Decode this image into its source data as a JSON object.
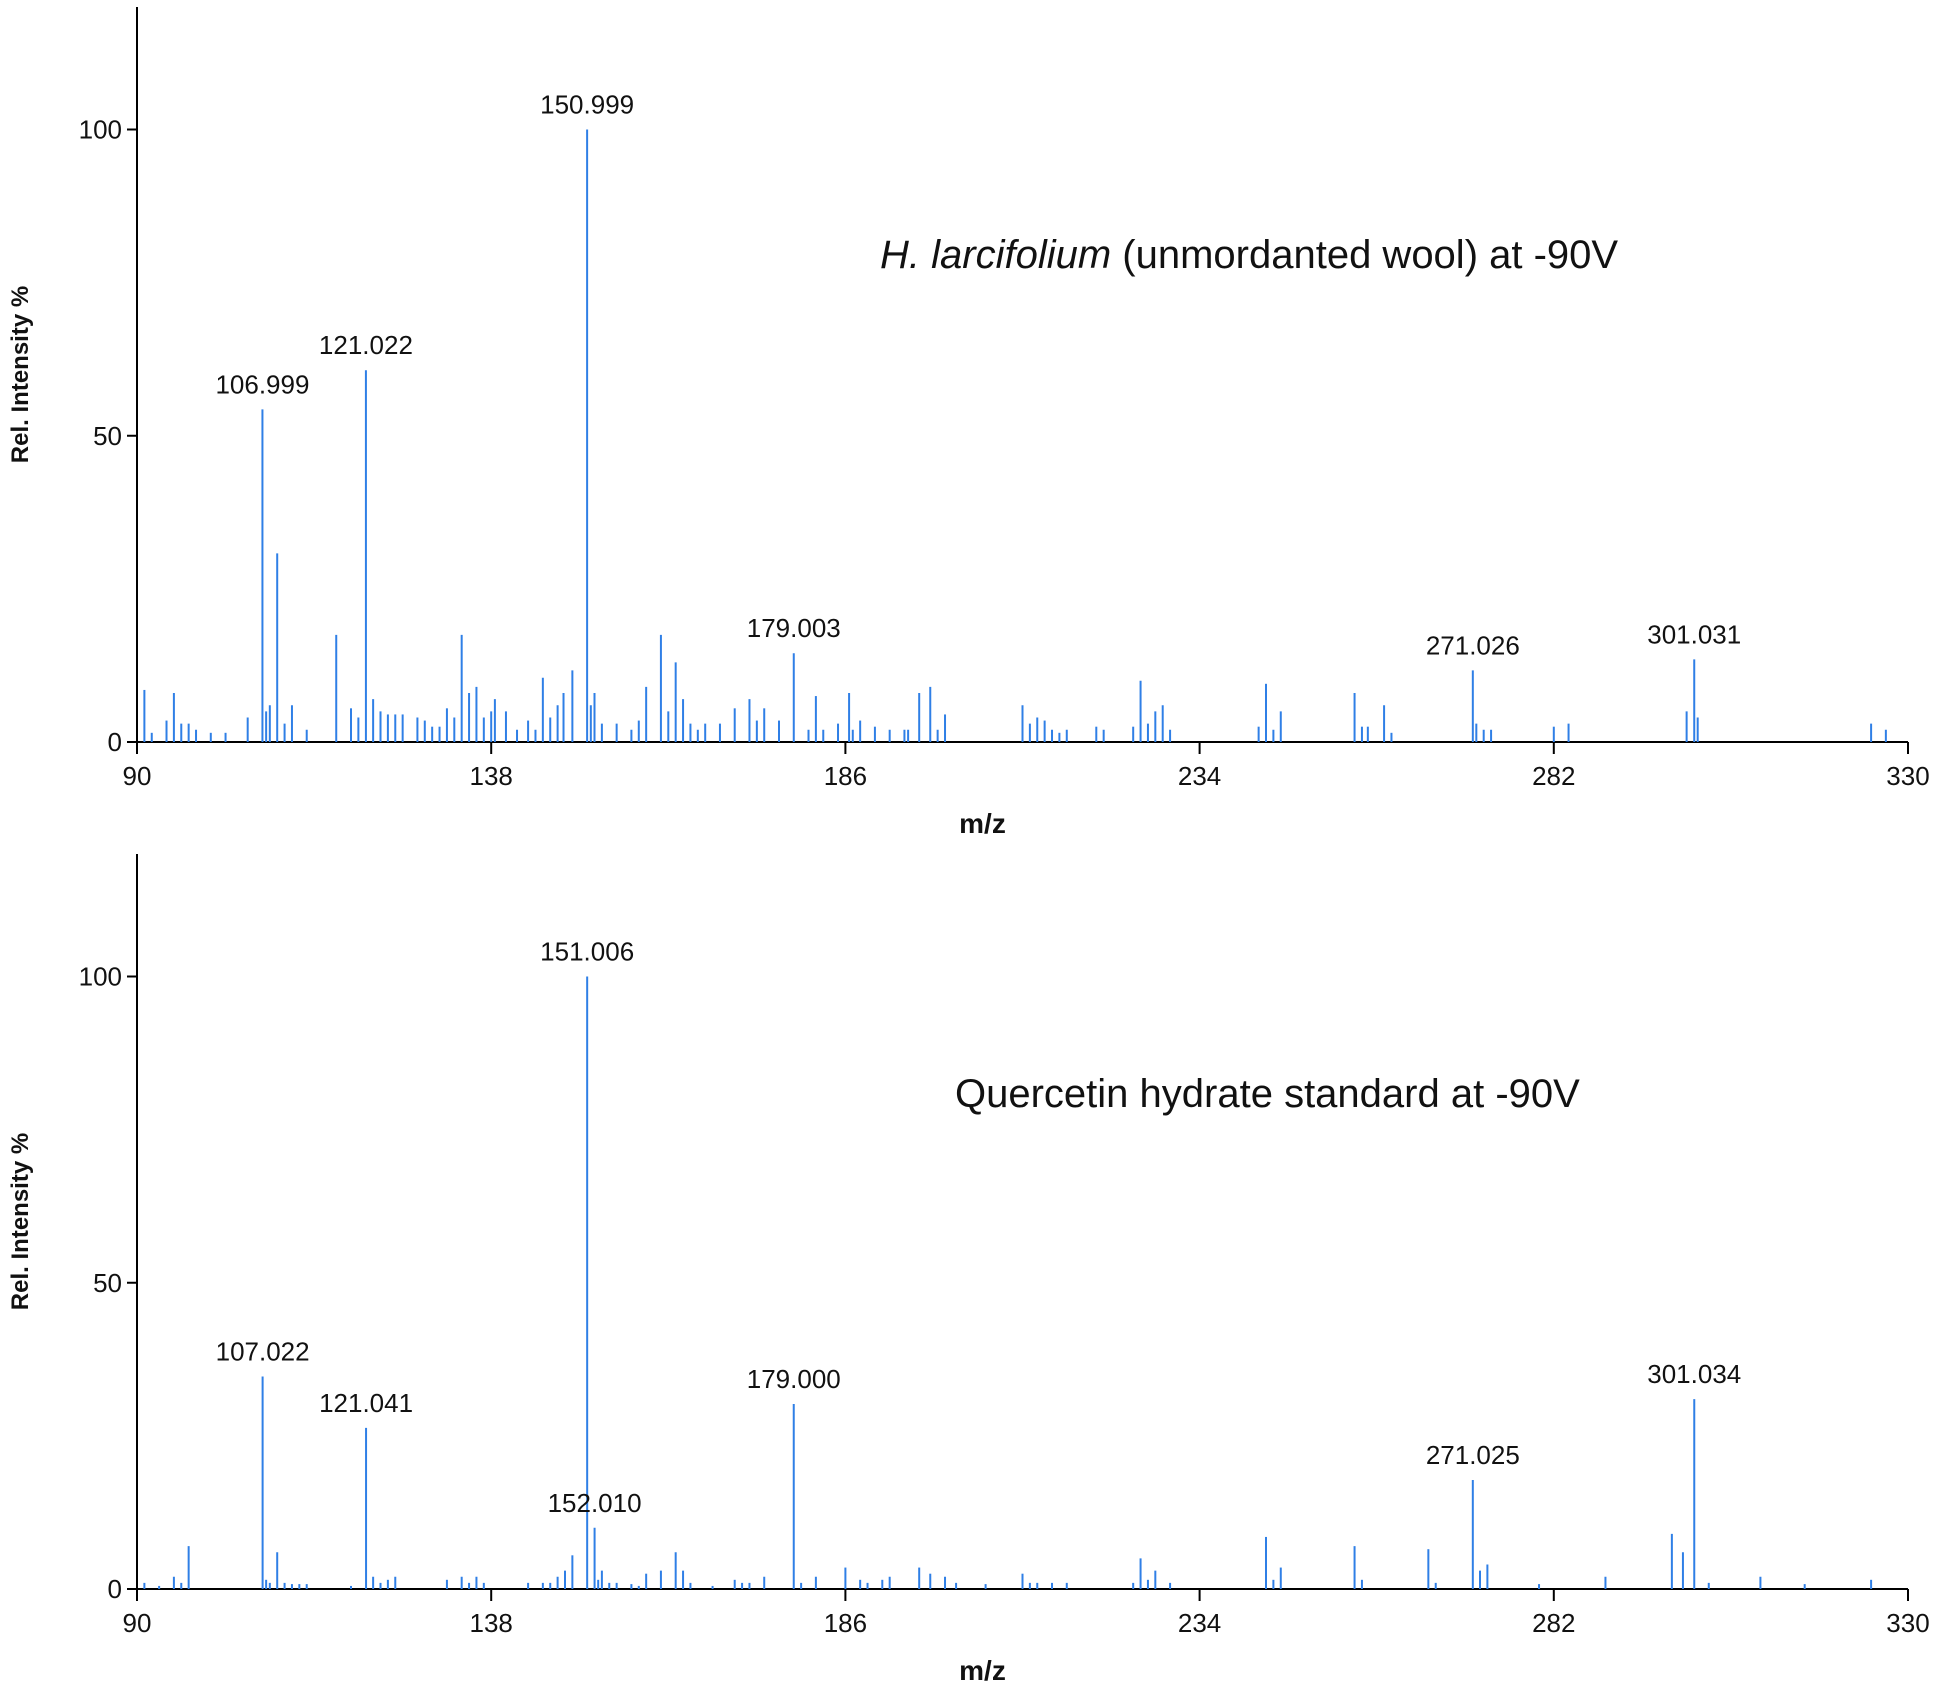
{
  "chart_data": [
    {
      "type": "bar",
      "chart_kind": "mass-spectrum-stick",
      "annotation": {
        "italic": "H. larcifolium",
        "rest": " (unmordanted wool) at -90V"
      },
      "xlabel": "m/z",
      "ylabel": "Rel. Intensity %",
      "xlim": [
        90,
        330
      ],
      "ylim": [
        0,
        120
      ],
      "xticks": [
        90,
        138,
        186,
        234,
        282,
        330
      ],
      "yticks": [
        0,
        50,
        100
      ],
      "grid": false,
      "color": "#2f7fe6",
      "peaks": [
        {
          "x": 91,
          "y": 8.5
        },
        {
          "x": 92,
          "y": 1.5
        },
        {
          "x": 94,
          "y": 3.5
        },
        {
          "x": 95,
          "y": 8
        },
        {
          "x": 96,
          "y": 3
        },
        {
          "x": 97,
          "y": 3
        },
        {
          "x": 98,
          "y": 2
        },
        {
          "x": 100,
          "y": 1.5
        },
        {
          "x": 102,
          "y": 1.5
        },
        {
          "x": 105,
          "y": 4
        },
        {
          "x": 106.999,
          "y": 54.3,
          "label": "106.999"
        },
        {
          "x": 107.5,
          "y": 5
        },
        {
          "x": 108,
          "y": 6
        },
        {
          "x": 109,
          "y": 30.8
        },
        {
          "x": 110,
          "y": 3
        },
        {
          "x": 111,
          "y": 6
        },
        {
          "x": 113,
          "y": 2
        },
        {
          "x": 117,
          "y": 17.5
        },
        {
          "x": 119,
          "y": 5.5
        },
        {
          "x": 120,
          "y": 4
        },
        {
          "x": 121.022,
          "y": 60.7,
          "label": "121.022"
        },
        {
          "x": 122,
          "y": 7
        },
        {
          "x": 123,
          "y": 5
        },
        {
          "x": 124,
          "y": 4.5
        },
        {
          "x": 125,
          "y": 4.5
        },
        {
          "x": 126,
          "y": 4.5
        },
        {
          "x": 128,
          "y": 4
        },
        {
          "x": 129,
          "y": 3.5
        },
        {
          "x": 130,
          "y": 2.5
        },
        {
          "x": 131,
          "y": 2.5
        },
        {
          "x": 132,
          "y": 5.5
        },
        {
          "x": 133,
          "y": 4
        },
        {
          "x": 134,
          "y": 17.5
        },
        {
          "x": 135,
          "y": 8
        },
        {
          "x": 136,
          "y": 9
        },
        {
          "x": 137,
          "y": 4
        },
        {
          "x": 138,
          "y": 5
        },
        {
          "x": 138.5,
          "y": 7
        },
        {
          "x": 140,
          "y": 5
        },
        {
          "x": 141.5,
          "y": 2
        },
        {
          "x": 143,
          "y": 3.5
        },
        {
          "x": 144,
          "y": 2
        },
        {
          "x": 145,
          "y": 10.5
        },
        {
          "x": 146,
          "y": 4
        },
        {
          "x": 147,
          "y": 6
        },
        {
          "x": 147.8,
          "y": 8
        },
        {
          "x": 149,
          "y": 11.7
        },
        {
          "x": 150.999,
          "y": 100,
          "label": "150.999"
        },
        {
          "x": 151.5,
          "y": 6
        },
        {
          "x": 152,
          "y": 8
        },
        {
          "x": 153,
          "y": 3
        },
        {
          "x": 155,
          "y": 3
        },
        {
          "x": 157,
          "y": 2
        },
        {
          "x": 158,
          "y": 3.5
        },
        {
          "x": 159,
          "y": 9
        },
        {
          "x": 161,
          "y": 17.5
        },
        {
          "x": 162,
          "y": 5
        },
        {
          "x": 163,
          "y": 13
        },
        {
          "x": 164,
          "y": 7
        },
        {
          "x": 165,
          "y": 3
        },
        {
          "x": 166,
          "y": 2
        },
        {
          "x": 167,
          "y": 3
        },
        {
          "x": 169,
          "y": 3
        },
        {
          "x": 171,
          "y": 5.5
        },
        {
          "x": 173,
          "y": 7
        },
        {
          "x": 174,
          "y": 3.5
        },
        {
          "x": 175,
          "y": 5.5
        },
        {
          "x": 177,
          "y": 3.5
        },
        {
          "x": 179.003,
          "y": 14.5,
          "label": "179.003"
        },
        {
          "x": 181,
          "y": 2
        },
        {
          "x": 182,
          "y": 7.5
        },
        {
          "x": 183,
          "y": 2
        },
        {
          "x": 185,
          "y": 3
        },
        {
          "x": 186.5,
          "y": 8
        },
        {
          "x": 187,
          "y": 2
        },
        {
          "x": 188,
          "y": 3.5
        },
        {
          "x": 190,
          "y": 2.5
        },
        {
          "x": 192,
          "y": 2
        },
        {
          "x": 194,
          "y": 2
        },
        {
          "x": 194.5,
          "y": 2
        },
        {
          "x": 196,
          "y": 8
        },
        {
          "x": 197.5,
          "y": 9
        },
        {
          "x": 198.5,
          "y": 2
        },
        {
          "x": 199.5,
          "y": 4.5
        },
        {
          "x": 210,
          "y": 6
        },
        {
          "x": 211,
          "y": 3
        },
        {
          "x": 212,
          "y": 4
        },
        {
          "x": 213,
          "y": 3.5
        },
        {
          "x": 214,
          "y": 2
        },
        {
          "x": 215,
          "y": 1.5
        },
        {
          "x": 216,
          "y": 2
        },
        {
          "x": 220,
          "y": 2.5
        },
        {
          "x": 221,
          "y": 2
        },
        {
          "x": 225,
          "y": 2.5
        },
        {
          "x": 226,
          "y": 10
        },
        {
          "x": 227,
          "y": 3
        },
        {
          "x": 228,
          "y": 5
        },
        {
          "x": 229,
          "y": 6
        },
        {
          "x": 230,
          "y": 2
        },
        {
          "x": 242,
          "y": 2.5
        },
        {
          "x": 243,
          "y": 9.5
        },
        {
          "x": 244,
          "y": 2
        },
        {
          "x": 245,
          "y": 5
        },
        {
          "x": 255,
          "y": 8
        },
        {
          "x": 256,
          "y": 2.5
        },
        {
          "x": 256.8,
          "y": 2.5
        },
        {
          "x": 259,
          "y": 6
        },
        {
          "x": 260,
          "y": 1.5
        },
        {
          "x": 271.026,
          "y": 11.7,
          "label": "271.026"
        },
        {
          "x": 271.5,
          "y": 3
        },
        {
          "x": 272.5,
          "y": 2
        },
        {
          "x": 273.5,
          "y": 2
        },
        {
          "x": 282,
          "y": 2.5
        },
        {
          "x": 284,
          "y": 3
        },
        {
          "x": 300,
          "y": 5
        },
        {
          "x": 301.031,
          "y": 13.5,
          "label": "301.031"
        },
        {
          "x": 301.5,
          "y": 4
        },
        {
          "x": 325,
          "y": 3
        },
        {
          "x": 327,
          "y": 2
        }
      ]
    },
    {
      "type": "bar",
      "chart_kind": "mass-spectrum-stick",
      "annotation": {
        "italic": "",
        "rest": "Quercetin hydrate standard at -90V"
      },
      "xlabel": "m/z",
      "ylabel": "Rel. Intensity %",
      "xlim": [
        90,
        330
      ],
      "ylim": [
        0,
        120
      ],
      "xticks": [
        90,
        138,
        186,
        234,
        282,
        330
      ],
      "yticks": [
        0,
        50,
        100
      ],
      "grid": false,
      "color": "#2f7fe6",
      "peaks": [
        {
          "x": 91,
          "y": 1
        },
        {
          "x": 93,
          "y": 0.5
        },
        {
          "x": 95,
          "y": 2
        },
        {
          "x": 96,
          "y": 1
        },
        {
          "x": 97,
          "y": 7
        },
        {
          "x": 107.022,
          "y": 34.7,
          "label": "107.022"
        },
        {
          "x": 107.5,
          "y": 1.5
        },
        {
          "x": 108,
          "y": 1
        },
        {
          "x": 109,
          "y": 6
        },
        {
          "x": 110,
          "y": 1
        },
        {
          "x": 111,
          "y": 0.8
        },
        {
          "x": 112,
          "y": 0.8
        },
        {
          "x": 113,
          "y": 0.8
        },
        {
          "x": 119,
          "y": 0.5
        },
        {
          "x": 121.041,
          "y": 26.3,
          "label": "121.041"
        },
        {
          "x": 122,
          "y": 2
        },
        {
          "x": 123,
          "y": 1
        },
        {
          "x": 124,
          "y": 1.5
        },
        {
          "x": 125,
          "y": 2
        },
        {
          "x": 132,
          "y": 1.5
        },
        {
          "x": 134,
          "y": 2
        },
        {
          "x": 135,
          "y": 1
        },
        {
          "x": 136,
          "y": 2
        },
        {
          "x": 137,
          "y": 1
        },
        {
          "x": 143,
          "y": 1
        },
        {
          "x": 145,
          "y": 1
        },
        {
          "x": 146,
          "y": 1
        },
        {
          "x": 147,
          "y": 2
        },
        {
          "x": 148,
          "y": 3
        },
        {
          "x": 149,
          "y": 5.5
        },
        {
          "x": 151.006,
          "y": 100,
          "label": "151.006"
        },
        {
          "x": 152.01,
          "y": 10,
          "label": "152.010"
        },
        {
          "x": 152.5,
          "y": 1.5
        },
        {
          "x": 153,
          "y": 3
        },
        {
          "x": 154,
          "y": 1
        },
        {
          "x": 155,
          "y": 1
        },
        {
          "x": 157,
          "y": 0.8
        },
        {
          "x": 158,
          "y": 0.5
        },
        {
          "x": 159,
          "y": 2.5
        },
        {
          "x": 161,
          "y": 3
        },
        {
          "x": 163,
          "y": 6
        },
        {
          "x": 164,
          "y": 3
        },
        {
          "x": 165,
          "y": 1
        },
        {
          "x": 168,
          "y": 0.5
        },
        {
          "x": 171,
          "y": 1.5
        },
        {
          "x": 172,
          "y": 1
        },
        {
          "x": 173,
          "y": 1
        },
        {
          "x": 175,
          "y": 2
        },
        {
          "x": 179.0,
          "y": 30.2,
          "label": "179.000"
        },
        {
          "x": 180,
          "y": 1
        },
        {
          "x": 182,
          "y": 2
        },
        {
          "x": 186,
          "y": 3.5
        },
        {
          "x": 188,
          "y": 1.5
        },
        {
          "x": 189,
          "y": 1
        },
        {
          "x": 191,
          "y": 1.5
        },
        {
          "x": 192,
          "y": 2
        },
        {
          "x": 196,
          "y": 3.5
        },
        {
          "x": 197.5,
          "y": 2.5
        },
        {
          "x": 199.5,
          "y": 2
        },
        {
          "x": 201,
          "y": 1
        },
        {
          "x": 205,
          "y": 0.8
        },
        {
          "x": 210,
          "y": 2.5
        },
        {
          "x": 211,
          "y": 1
        },
        {
          "x": 212,
          "y": 1
        },
        {
          "x": 214,
          "y": 1
        },
        {
          "x": 216,
          "y": 1
        },
        {
          "x": 225,
          "y": 1
        },
        {
          "x": 226,
          "y": 5
        },
        {
          "x": 227,
          "y": 1.5
        },
        {
          "x": 228,
          "y": 3
        },
        {
          "x": 230,
          "y": 1
        },
        {
          "x": 243,
          "y": 8.5
        },
        {
          "x": 244,
          "y": 1.5
        },
        {
          "x": 245,
          "y": 3.5
        },
        {
          "x": 255,
          "y": 7
        },
        {
          "x": 256,
          "y": 1.5
        },
        {
          "x": 265,
          "y": 6.5
        },
        {
          "x": 266,
          "y": 1
        },
        {
          "x": 271.025,
          "y": 17.8,
          "label": "271.025"
        },
        {
          "x": 272,
          "y": 3
        },
        {
          "x": 273,
          "y": 4
        },
        {
          "x": 280,
          "y": 0.8
        },
        {
          "x": 289,
          "y": 2
        },
        {
          "x": 298,
          "y": 9
        },
        {
          "x": 299.5,
          "y": 6
        },
        {
          "x": 301.034,
          "y": 31,
          "label": "301.034"
        },
        {
          "x": 303,
          "y": 1
        },
        {
          "x": 310,
          "y": 2
        },
        {
          "x": 316,
          "y": 0.8
        },
        {
          "x": 325,
          "y": 1.5
        }
      ]
    }
  ]
}
